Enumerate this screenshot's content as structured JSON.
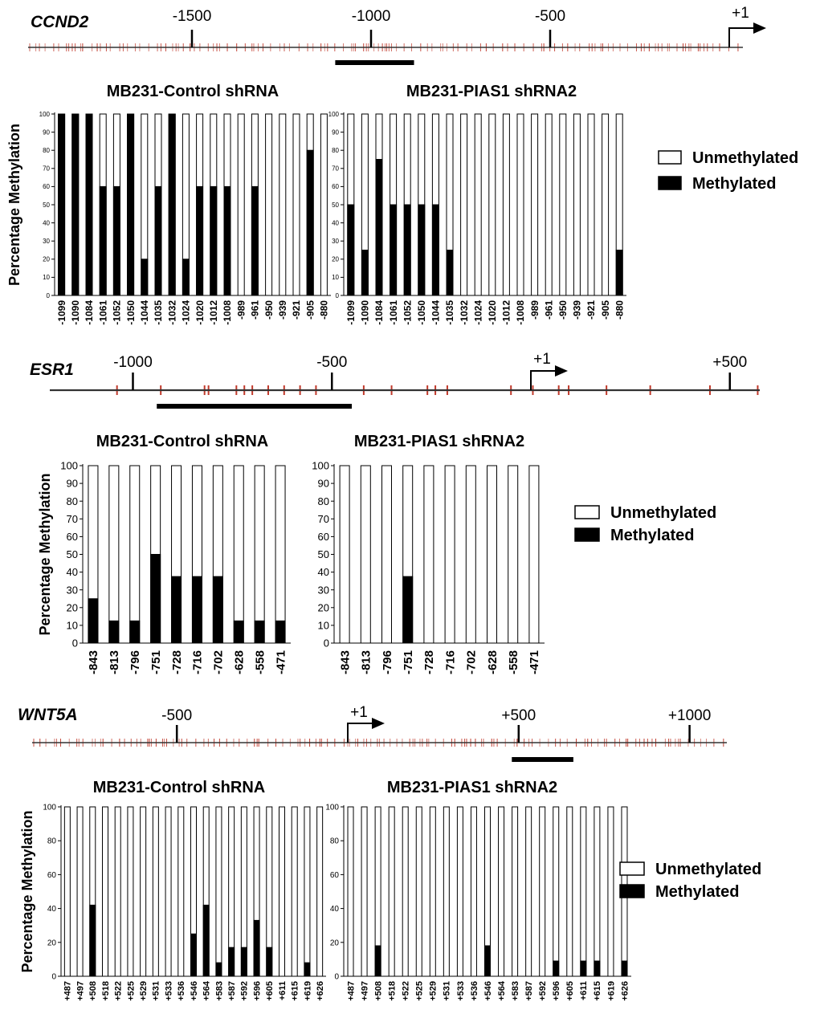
{
  "colors": {
    "methylated": "#000000",
    "unmethylated": "#ffffff",
    "cpg_site": "#c0392b",
    "axis": "#000000"
  },
  "legend": {
    "unmethylated": "Unmethylated",
    "methylated": "Methylated"
  },
  "ylabel": "Percentage Methylation",
  "genes": [
    {
      "name": "CCND2",
      "positions": [
        {
          "label": "-1500",
          "value": -1500
        },
        {
          "label": "-1000",
          "value": -1000
        },
        {
          "label": "-500",
          "value": -500
        },
        {
          "label": "+1",
          "value": 0
        }
      ],
      "region": [
        -1100,
        -880
      ]
    },
    {
      "name": "ESR1",
      "positions": [
        {
          "label": "-1000",
          "value": -1000
        },
        {
          "label": "-500",
          "value": -500
        },
        {
          "label": "+1",
          "value": 0
        },
        {
          "label": "+500",
          "value": 500
        }
      ],
      "region": [
        -940,
        -450
      ],
      "cpg_sites": [
        -1040,
        -930,
        -820,
        -810,
        -740,
        -720,
        -700,
        -660,
        -620,
        -580,
        -540,
        -420,
        -350,
        -260,
        -240,
        -210,
        -50,
        5,
        70,
        95,
        190,
        300,
        450,
        570
      ]
    },
    {
      "name": "WNT5A",
      "positions": [
        {
          "label": "-500",
          "value": -500
        },
        {
          "label": "+1",
          "value": 0
        },
        {
          "label": "+500",
          "value": 500
        },
        {
          "label": "+1000",
          "value": 1000
        }
      ],
      "region": [
        480,
        660
      ]
    }
  ],
  "chart_data": [
    {
      "type": "bar",
      "title": "MB231-Control shRNA",
      "ylabel": "Percentage Methylation",
      "ylim": [
        0,
        100
      ],
      "yticks": [
        0,
        10,
        20,
        30,
        40,
        50,
        60,
        70,
        80,
        90,
        100
      ],
      "categories": [
        "-1099",
        "-1090",
        "-1084",
        "-1061",
        "-1052",
        "-1050",
        "-1044",
        "-1035",
        "-1032",
        "-1024",
        "-1020",
        "-1012",
        "-1008",
        "-989",
        "-961",
        "-950",
        "-939",
        "-921",
        "-905",
        "-880"
      ],
      "series": [
        {
          "name": "Methylated",
          "values": [
            100,
            100,
            100,
            60,
            60,
            100,
            20,
            60,
            100,
            20,
            60,
            60,
            60,
            0,
            60,
            0,
            0,
            0,
            80,
            0
          ]
        },
        {
          "name": "Unmethylated",
          "values": [
            0,
            0,
            0,
            40,
            40,
            0,
            80,
            40,
            0,
            80,
            40,
            40,
            40,
            100,
            40,
            100,
            100,
            100,
            20,
            100
          ]
        }
      ],
      "stacked": true
    },
    {
      "type": "bar",
      "title": "MB231-PIAS1 shRNA2",
      "ylim": [
        0,
        100
      ],
      "yticks": [
        0,
        10,
        20,
        30,
        40,
        50,
        60,
        70,
        80,
        90,
        100
      ],
      "categories": [
        "-1099",
        "-1090",
        "-1084",
        "-1061",
        "-1052",
        "-1050",
        "-1044",
        "-1035",
        "-1032",
        "-1024",
        "-1020",
        "-1012",
        "-1008",
        "-989",
        "-961",
        "-950",
        "-939",
        "-921",
        "-905",
        "-880"
      ],
      "series": [
        {
          "name": "Methylated",
          "values": [
            50,
            25,
            75,
            50,
            50,
            50,
            50,
            25,
            0,
            0,
            0,
            0,
            0,
            0,
            0,
            0,
            0,
            0,
            0,
            25
          ]
        },
        {
          "name": "Unmethylated",
          "values": [
            50,
            75,
            25,
            50,
            50,
            50,
            50,
            75,
            100,
            100,
            100,
            100,
            100,
            100,
            100,
            100,
            100,
            100,
            100,
            75
          ]
        }
      ],
      "stacked": true
    },
    {
      "type": "bar",
      "title": "MB231-Control shRNA",
      "ylabel": "Percentage Methylation",
      "ylim": [
        0,
        100
      ],
      "yticks": [
        0,
        10,
        20,
        30,
        40,
        50,
        60,
        70,
        80,
        90,
        100
      ],
      "categories": [
        "-843",
        "-813",
        "-796",
        "-751",
        "-728",
        "-716",
        "-702",
        "-628",
        "-558",
        "-471"
      ],
      "series": [
        {
          "name": "Methylated",
          "values": [
            25,
            12.5,
            12.5,
            50,
            37.5,
            37.5,
            37.5,
            12.5,
            12.5,
            12.5
          ]
        },
        {
          "name": "Unmethylated",
          "values": [
            75,
            87.5,
            87.5,
            50,
            62.5,
            62.5,
            62.5,
            87.5,
            87.5,
            87.5
          ]
        }
      ],
      "stacked": true
    },
    {
      "type": "bar",
      "title": "MB231-PIAS1 shRNA2",
      "ylim": [
        0,
        100
      ],
      "yticks": [
        0,
        10,
        20,
        30,
        40,
        50,
        60,
        70,
        80,
        90,
        100
      ],
      "categories": [
        "-843",
        "-813",
        "-796",
        "-751",
        "-728",
        "-716",
        "-702",
        "-628",
        "-558",
        "-471"
      ],
      "series": [
        {
          "name": "Methylated",
          "values": [
            0,
            0,
            0,
            37.5,
            0,
            0,
            0,
            0,
            0,
            0
          ]
        },
        {
          "name": "Unmethylated",
          "values": [
            100,
            100,
            100,
            62.5,
            100,
            100,
            100,
            100,
            100,
            100
          ]
        }
      ],
      "stacked": true
    },
    {
      "type": "bar",
      "title": "MB231-Control shRNA",
      "ylabel": "Percentage Methylation",
      "ylim": [
        0,
        100
      ],
      "yticks": [
        0,
        20,
        40,
        60,
        80,
        100
      ],
      "categories": [
        "+487",
        "+497",
        "+508",
        "+518",
        "+522",
        "+525",
        "+529",
        "+531",
        "+533",
        "+536",
        "+546",
        "+564",
        "+583",
        "+587",
        "+592",
        "+596",
        "+605",
        "+611",
        "+615",
        "+619",
        "+626"
      ],
      "series": [
        {
          "name": "Methylated",
          "values": [
            0,
            0,
            42,
            0,
            0,
            0,
            0,
            0,
            0,
            0,
            25,
            42,
            8,
            17,
            17,
            33,
            17,
            0,
            0,
            8,
            0
          ]
        },
        {
          "name": "Unmethylated",
          "values": [
            100,
            100,
            58,
            100,
            100,
            100,
            100,
            100,
            100,
            100,
            75,
            58,
            92,
            83,
            83,
            67,
            83,
            100,
            100,
            92,
            100
          ]
        }
      ],
      "stacked": true
    },
    {
      "type": "bar",
      "title": "MB231-PIAS1 shRNA2",
      "ylim": [
        0,
        100
      ],
      "yticks": [
        0,
        20,
        40,
        60,
        80,
        100
      ],
      "categories": [
        "+487",
        "+497",
        "+508",
        "+518",
        "+522",
        "+525",
        "+529",
        "+531",
        "+533",
        "+536",
        "+546",
        "+564",
        "+583",
        "+587",
        "+592",
        "+596",
        "+605",
        "+611",
        "+615",
        "+619",
        "+626"
      ],
      "series": [
        {
          "name": "Methylated",
          "values": [
            0,
            0,
            18,
            0,
            0,
            0,
            0,
            0,
            0,
            0,
            18,
            0,
            0,
            0,
            0,
            9,
            0,
            9,
            9,
            0,
            9
          ]
        },
        {
          "name": "Unmethylated",
          "values": [
            100,
            100,
            82,
            100,
            100,
            100,
            100,
            100,
            100,
            100,
            82,
            100,
            100,
            100,
            100,
            91,
            100,
            91,
            91,
            100,
            91
          ]
        }
      ],
      "stacked": true
    }
  ]
}
